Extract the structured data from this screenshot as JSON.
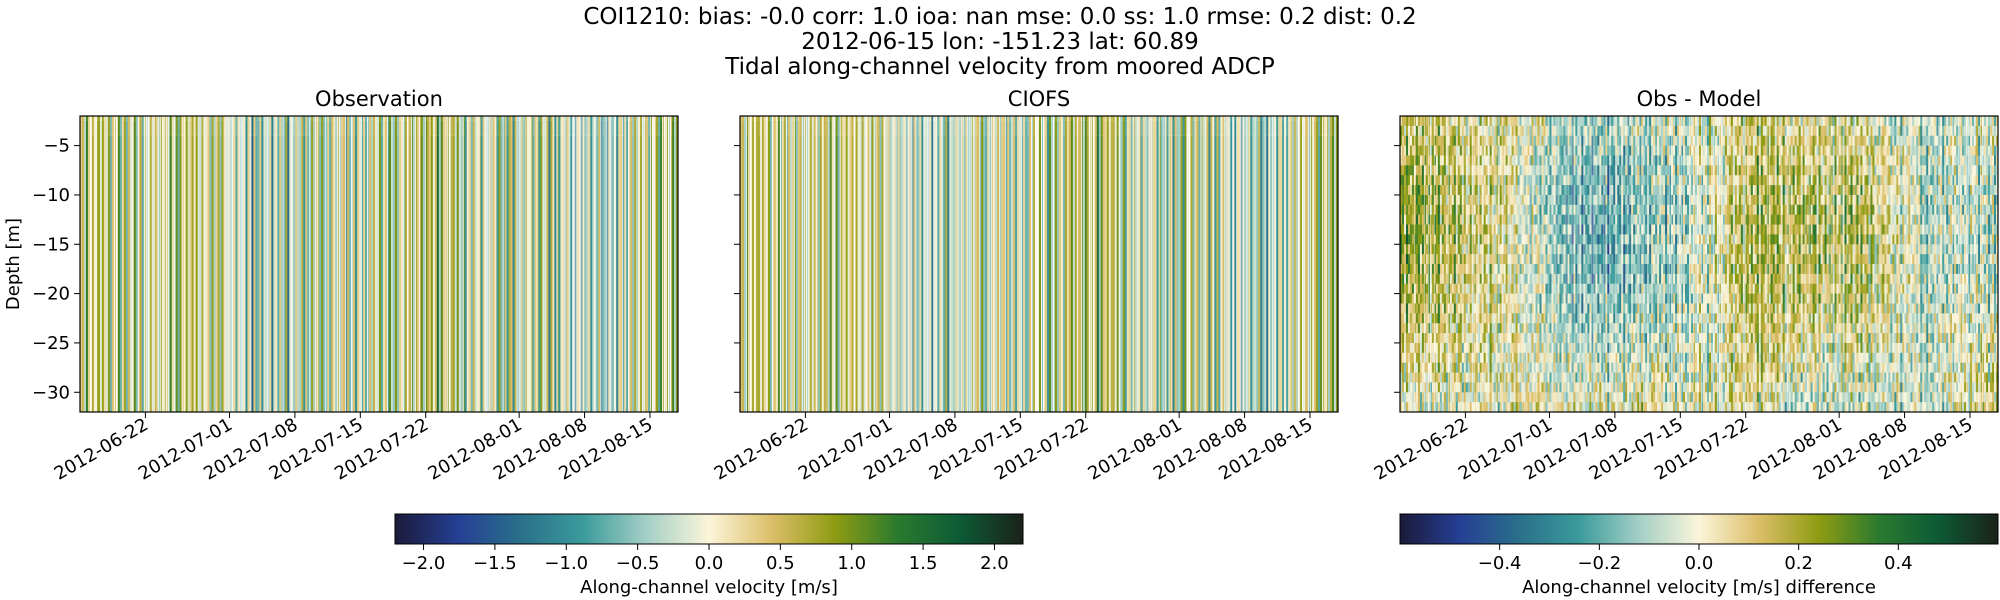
{
  "titles": [
    "COI1210: bias: -0.0  corr: 1.0  ioa: nan  mse: 0.0  ss: 1.0  rmse: 0.2  dist: 0.2",
    "2012-06-15 lon: -151.23 lat: 60.89",
    "Tidal along-channel velocity from moored ADCP"
  ],
  "colormap_stops": [
    "#1b1a3a",
    "#253f94",
    "#2a708a",
    "#3b9b9b",
    "#a4cfc6",
    "#fbf5d9",
    "#dbbe68",
    "#8f9c13",
    "#2b7a2e",
    "#0d5a36",
    "#1b2219"
  ],
  "chart_data": [
    {
      "type": "heatmap",
      "title": "Observation",
      "ylabel": "Depth [m]",
      "xlabel": "",
      "x_range": [
        "2012-06-15",
        "2012-08-18"
      ],
      "ylim": [
        -32,
        -2
      ],
      "x_ticks": [
        "2012-06-22",
        "2012-07-01",
        "2012-07-08",
        "2012-07-15",
        "2012-07-22",
        "2012-08-01",
        "2012-08-08",
        "2012-08-15"
      ],
      "y_ticks": [
        -5,
        -10,
        -15,
        -20,
        -25,
        -30
      ],
      "value_range": [
        -2.2,
        2.2
      ]
    },
    {
      "type": "heatmap",
      "title": "CIOFS",
      "xlabel": "",
      "x_range": [
        "2012-06-15",
        "2012-08-18"
      ],
      "ylim": [
        -32,
        -2
      ],
      "x_ticks": [
        "2012-06-22",
        "2012-07-01",
        "2012-07-08",
        "2012-07-15",
        "2012-07-22",
        "2012-08-01",
        "2012-08-08",
        "2012-08-15"
      ],
      "y_ticks": [
        -5,
        -10,
        -15,
        -20,
        -25,
        -30
      ],
      "value_range": [
        -2.2,
        2.2
      ]
    },
    {
      "type": "heatmap",
      "title": "Obs - Model",
      "xlabel": "",
      "x_range": [
        "2012-06-15",
        "2012-08-18"
      ],
      "ylim": [
        -32,
        -2
      ],
      "x_ticks": [
        "2012-06-22",
        "2012-07-01",
        "2012-07-08",
        "2012-07-15",
        "2012-07-22",
        "2012-08-01",
        "2012-08-08",
        "2012-08-15"
      ],
      "y_ticks": [
        -5,
        -10,
        -15,
        -20,
        -25,
        -30
      ],
      "value_range": [
        -0.6,
        0.6
      ]
    }
  ],
  "colorbars": [
    {
      "label": "Along-channel velocity [m/s]",
      "range": [
        -2.2,
        2.2
      ],
      "ticks": [
        "−2.0",
        "−1.5",
        "−1.0",
        "−0.5",
        "0.0",
        "0.5",
        "1.0",
        "1.5",
        "2.0"
      ],
      "tick_values": [
        -2.0,
        -1.5,
        -1.0,
        -0.5,
        0.0,
        0.5,
        1.0,
        1.5,
        2.0
      ]
    },
    {
      "label": "Along-channel velocity [m/s] difference",
      "range": [
        -0.6,
        0.6
      ],
      "ticks": [
        "−0.4",
        "−0.2",
        "0.0",
        "0.2",
        "0.4"
      ],
      "tick_values": [
        -0.4,
        -0.2,
        0.0,
        0.2,
        0.4
      ]
    }
  ]
}
